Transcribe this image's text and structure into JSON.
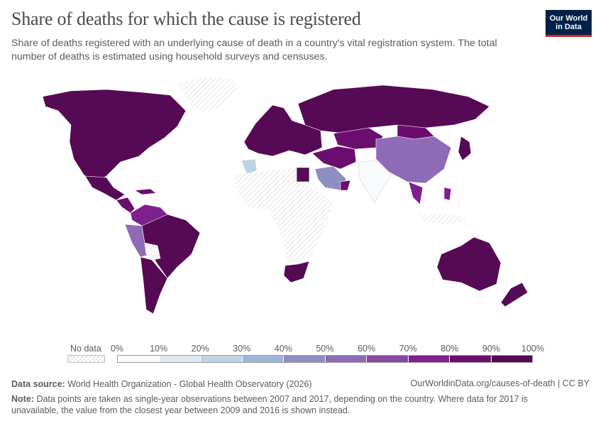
{
  "header": {
    "title": "Share of deaths for which the cause is registered",
    "subtitle": "Share of deaths registered with an underlying cause of death in a country's vital registration system. The total number of deaths is estimated using household surveys and censuses."
  },
  "logo": {
    "line1": "Our World",
    "line2": "in Data"
  },
  "legend": {
    "no_data_label": "No data",
    "ticks": [
      "0%",
      "10%",
      "20%",
      "30%",
      "40%",
      "50%",
      "60%",
      "70%",
      "80%",
      "90%",
      "100%"
    ],
    "bin_colors": [
      "#f7fbfd",
      "#dde9f1",
      "#bed3e3",
      "#9fb7d7",
      "#8e8dc4",
      "#8e6ab7",
      "#8b47a5",
      "#7e208e",
      "#6b0d6e",
      "#560a55"
    ],
    "no_data_color": "#e4e4e4"
  },
  "footer": {
    "source_label": "Data source:",
    "source_text": "World Health Organization - Global Health Observatory (2026)",
    "url_text": "OurWorldinData.org/causes-of-death | CC BY",
    "note_label": "Note:",
    "note_text": "Data points are taken as single-year observations between 2007 and 2017, depending on the country. Where data for 2017 is unavailable, the value from the closest year between 2009 and 2016 is shown instead."
  },
  "map_regions": [
    {
      "name": "North America",
      "share_bin": "90-100%"
    },
    {
      "name": "Greenland",
      "share_bin": "no data"
    },
    {
      "name": "Mexico",
      "share_bin": "90-100%"
    },
    {
      "name": "Central America",
      "share_bin": "70-100%"
    },
    {
      "name": "Colombia & Venezuela",
      "share_bin": "70-80%"
    },
    {
      "name": "Peru & Ecuador",
      "share_bin": "50-60%"
    },
    {
      "name": "Brazil",
      "share_bin": "90-100%"
    },
    {
      "name": "Bolivia",
      "share_bin": "no data"
    },
    {
      "name": "Southern Cone",
      "share_bin": "90-100%"
    },
    {
      "name": "Europe",
      "share_bin": "90-100%"
    },
    {
      "name": "Russia",
      "share_bin": "90-100%"
    },
    {
      "name": "Central Asia",
      "share_bin": "80-90%"
    },
    {
      "name": "China",
      "share_bin": "60-70%"
    },
    {
      "name": "Mongolia",
      "share_bin": "80-90%"
    },
    {
      "name": "India",
      "share_bin": "0-10%"
    },
    {
      "name": "Saudi Arabia",
      "share_bin": "40-50%"
    },
    {
      "name": "Egypt",
      "share_bin": "90-100%"
    },
    {
      "name": "Morocco & Algeria",
      "share_bin": "20-30%"
    },
    {
      "name": "Sub-Saharan Africa",
      "share_bin": "no data"
    },
    {
      "name": "South Africa",
      "share_bin": "90-100%"
    },
    {
      "name": "Southeast Asia",
      "share_bin": "70-80%"
    },
    {
      "name": "Japan",
      "share_bin": "90-100%"
    },
    {
      "name": "Australia",
      "share_bin": "90-100%"
    },
    {
      "name": "New Zealand",
      "share_bin": "90-100%"
    }
  ]
}
